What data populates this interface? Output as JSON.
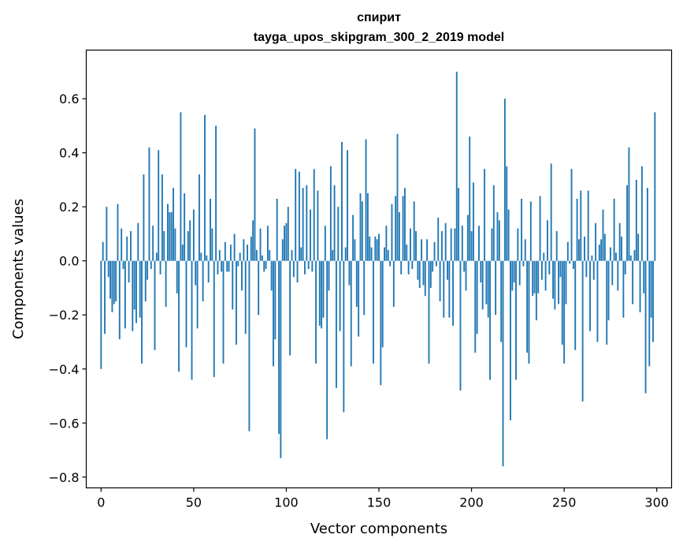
{
  "chart_data": {
    "type": "bar",
    "title_line1": "спирит",
    "title_line2": "tayga_upos_skipgram_300_2_2019 model",
    "xlabel": "Vector components",
    "ylabel": "Components values",
    "xlim": [
      -8,
      308
    ],
    "ylim": [
      -0.84,
      0.78
    ],
    "xticks": [
      0,
      50,
      100,
      150,
      200,
      250,
      300
    ],
    "xtick_labels": [
      "0",
      "50",
      "100",
      "150",
      "200",
      "250",
      "300"
    ],
    "yticks": [
      -0.8,
      -0.6,
      -0.4,
      -0.2,
      0.0,
      0.2,
      0.4,
      0.6
    ],
    "ytick_labels": [
      "−0.8",
      "−0.6",
      "−0.4",
      "−0.2",
      "0.0",
      "0.2",
      "0.4",
      "0.6"
    ],
    "bar_color": "#1f77b4",
    "grid": false,
    "n_components": 300,
    "values": [
      -0.4,
      0.07,
      -0.27,
      0.2,
      -0.06,
      -0.14,
      -0.19,
      -0.16,
      -0.15,
      0.21,
      -0.29,
      0.12,
      -0.03,
      -0.25,
      0.09,
      -0.08,
      0.11,
      -0.26,
      -0.18,
      -0.23,
      0.14,
      -0.21,
      -0.38,
      0.32,
      -0.15,
      -0.07,
      0.42,
      -0.03,
      0.13,
      -0.33,
      0.03,
      0.41,
      -0.05,
      0.32,
      0.11,
      -0.17,
      0.21,
      0.18,
      0.18,
      0.27,
      0.12,
      -0.12,
      -0.41,
      0.55,
      0.06,
      0.25,
      -0.32,
      0.11,
      0.15,
      -0.44,
      0.19,
      -0.09,
      -0.25,
      0.32,
      0.03,
      -0.15,
      0.54,
      0.02,
      -0.08,
      0.23,
      0.12,
      -0.43,
      0.5,
      -0.05,
      0.04,
      -0.04,
      -0.38,
      0.07,
      -0.04,
      -0.04,
      0.06,
      -0.18,
      0.1,
      -0.31,
      -0.02,
      0.03,
      -0.11,
      0.08,
      -0.27,
      0.06,
      -0.63,
      0.09,
      0.15,
      0.49,
      0.04,
      -0.2,
      0.12,
      0.02,
      -0.04,
      -0.03,
      0.13,
      0.04,
      -0.11,
      -0.39,
      -0.29,
      0.23,
      -0.64,
      -0.73,
      0.08,
      0.13,
      0.14,
      0.2,
      -0.35,
      0.04,
      -0.06,
      0.34,
      -0.08,
      0.33,
      0.05,
      0.27,
      -0.05,
      0.28,
      -0.03,
      0.19,
      -0.04,
      0.34,
      -0.38,
      0.26,
      -0.24,
      -0.25,
      -0.21,
      0.13,
      -0.66,
      -0.11,
      0.35,
      0.04,
      0.28,
      -0.47,
      0.2,
      -0.26,
      0.44,
      -0.56,
      0.05,
      0.41,
      -0.09,
      -0.39,
      0.17,
      0.08,
      -0.17,
      -0.28,
      0.25,
      0.22,
      -0.2,
      0.45,
      0.25,
      0.09,
      0.05,
      -0.38,
      0.09,
      0.08,
      0.1,
      -0.46,
      -0.32,
      0.05,
      0.13,
      0.04,
      -0.02,
      0.21,
      -0.17,
      0.24,
      0.47,
      0.18,
      -0.05,
      0.24,
      0.27,
      0.06,
      -0.05,
      0.12,
      -0.03,
      0.22,
      0.11,
      -0.07,
      -0.1,
      0.08,
      -0.09,
      -0.13,
      0.08,
      -0.38,
      -0.1,
      -0.04,
      0.07,
      -0.02,
      0.16,
      -0.15,
      0.11,
      -0.21,
      0.14,
      -0.07,
      -0.21,
      0.12,
      -0.24,
      0.12,
      0.7,
      0.27,
      -0.48,
      0.13,
      -0.04,
      -0.11,
      0.17,
      0.46,
      0.11,
      0.29,
      -0.34,
      -0.27,
      0.13,
      -0.08,
      -0.18,
      0.34,
      -0.16,
      -0.21,
      -0.44,
      0.12,
      0.28,
      -0.2,
      0.18,
      0.15,
      -0.3,
      -0.76,
      0.6,
      0.35,
      0.19,
      -0.59,
      -0.11,
      -0.08,
      -0.44,
      0.12,
      -0.09,
      0.23,
      -0.02,
      0.08,
      -0.34,
      -0.38,
      0.22,
      -0.13,
      -0.12,
      -0.22,
      -0.12,
      0.24,
      -0.07,
      0.03,
      -0.11,
      0.15,
      -0.05,
      0.36,
      -0.14,
      -0.18,
      0.11,
      -0.16,
      -0.06,
      -0.31,
      -0.38,
      -0.16,
      0.07,
      -0.01,
      0.34,
      -0.03,
      -0.33,
      0.23,
      0.08,
      0.26,
      -0.52,
      0.09,
      -0.06,
      0.26,
      -0.26,
      0.02,
      -0.07,
      0.14,
      -0.3,
      0.06,
      0.08,
      0.19,
      0.1,
      -0.31,
      -0.22,
      0.05,
      -0.09,
      0.23,
      0.03,
      -0.11,
      0.14,
      0.09,
      -0.21,
      -0.05,
      0.28,
      0.42,
      0.02,
      -0.16,
      0.04,
      0.3,
      0.1,
      -0.19,
      0.35,
      -0.12,
      -0.49,
      0.27,
      -0.39,
      -0.21,
      -0.3,
      0.55
    ]
  }
}
